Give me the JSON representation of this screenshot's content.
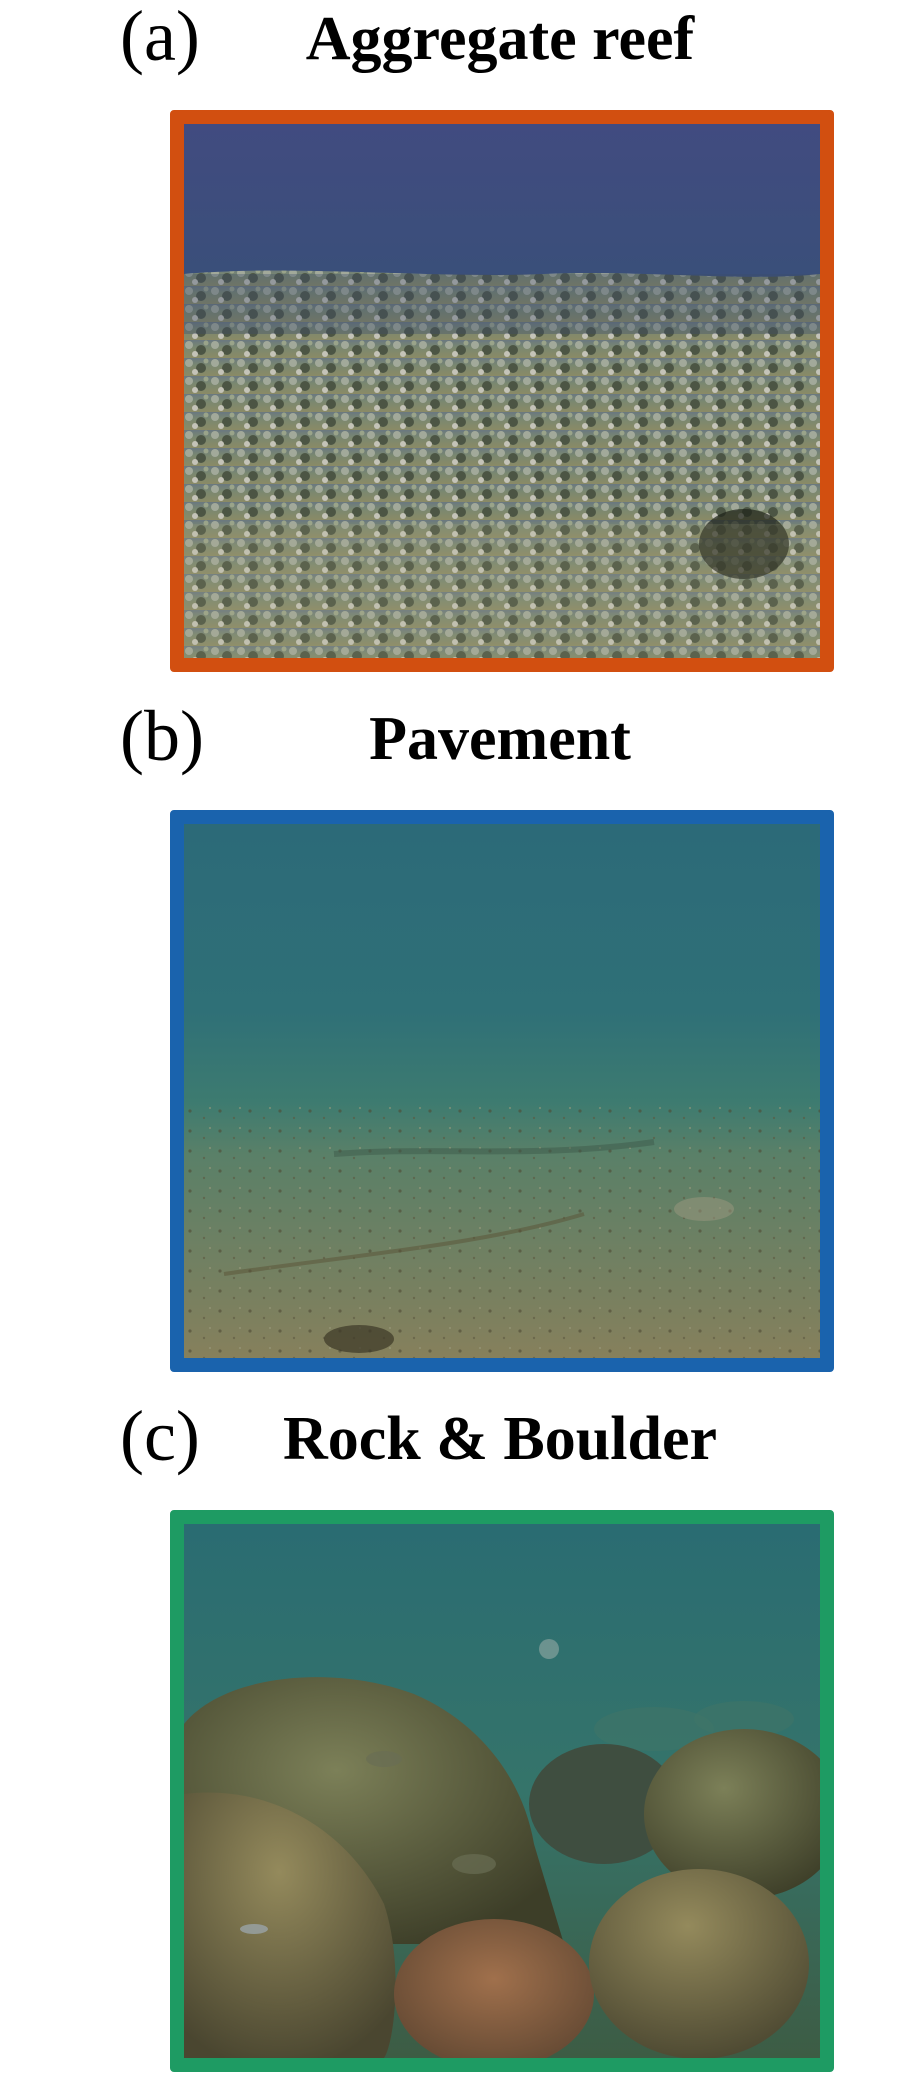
{
  "panels": [
    {
      "label": "(a)",
      "title": "Aggregate reef",
      "border_color": "#d24f10"
    },
    {
      "label": "(b)",
      "title": "Pavement",
      "border_color": "#1a63ad"
    },
    {
      "label": "(c)",
      "title": "Rock & Boulder",
      "border_color": "#1e9b63"
    }
  ]
}
